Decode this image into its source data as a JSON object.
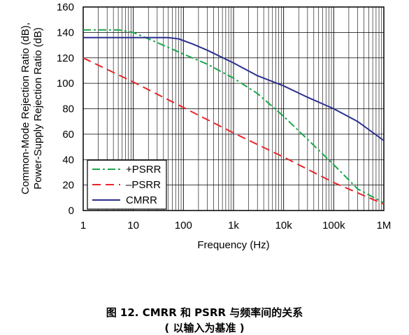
{
  "chart_data": {
    "type": "line",
    "xscale": "log",
    "xlim": [
      1,
      1000000
    ],
    "ylim": [
      0,
      160
    ],
    "xlabel": "Frequency (Hz)",
    "ylabel_lines": [
      "Common-Mode Rejection Ratio (dB),",
      "Power-Supply Rejection Ratio (dB)"
    ],
    "x_ticks": [
      {
        "value": 1,
        "label": "1"
      },
      {
        "value": 10,
        "label": "10"
      },
      {
        "value": 100,
        "label": "100"
      },
      {
        "value": 1000,
        "label": "1k"
      },
      {
        "value": 10000,
        "label": "10k"
      },
      {
        "value": 100000,
        "label": "100k"
      },
      {
        "value": 1000000,
        "label": "1M"
      }
    ],
    "y_ticks": [
      0,
      20,
      40,
      60,
      80,
      100,
      120,
      140,
      160
    ],
    "grid": true,
    "legend_position": "bottom-left",
    "series": [
      {
        "name": "+PSRR",
        "color": "#1aa64a",
        "style": "dash-dot",
        "points": [
          [
            1,
            142
          ],
          [
            5,
            142
          ],
          [
            10,
            140
          ],
          [
            30,
            132
          ],
          [
            100,
            123
          ],
          [
            300,
            115
          ],
          [
            1000,
            104
          ],
          [
            3000,
            92
          ],
          [
            10000,
            74
          ],
          [
            30000,
            56
          ],
          [
            100000,
            36
          ],
          [
            300000,
            17
          ],
          [
            1000000,
            6
          ]
        ]
      },
      {
        "name": "–PSRR",
        "color": "#e8262b",
        "style": "dashed",
        "points": [
          [
            1,
            120
          ],
          [
            10,
            101
          ],
          [
            100,
            81
          ],
          [
            1000,
            61
          ],
          [
            10000,
            42
          ],
          [
            100000,
            22
          ],
          [
            1000000,
            5
          ]
        ]
      },
      {
        "name": "CMRR",
        "color": "#2b2f8f",
        "style": "solid",
        "points": [
          [
            1,
            136
          ],
          [
            10,
            136
          ],
          [
            50,
            136
          ],
          [
            80,
            135
          ],
          [
            150,
            131
          ],
          [
            300,
            126
          ],
          [
            1000,
            116
          ],
          [
            3000,
            106
          ],
          [
            10000,
            98
          ],
          [
            30000,
            89
          ],
          [
            100000,
            80
          ],
          [
            300000,
            70
          ],
          [
            1000000,
            55
          ]
        ]
      }
    ]
  },
  "caption": {
    "line1": "图 12. CMRR 和 PSRR 与频率间的关系",
    "line2": "( 以输入为基准 )"
  }
}
